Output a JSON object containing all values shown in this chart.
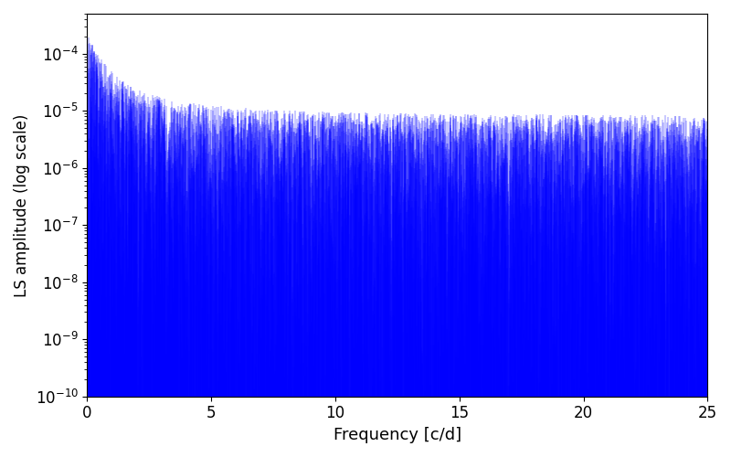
{
  "xlabel": "Frequency [c/d]",
  "ylabel": "LS amplitude (log scale)",
  "xlim": [
    0,
    25
  ],
  "ylim": [
    1e-10,
    0.0005
  ],
  "line_color": "#0000ff",
  "background_color": "#ffffff",
  "xlabel_fontsize": 13,
  "ylabel_fontsize": 12,
  "tick_fontsize": 12,
  "n_points": 8000,
  "seed": 137,
  "freq_max": 25.0
}
